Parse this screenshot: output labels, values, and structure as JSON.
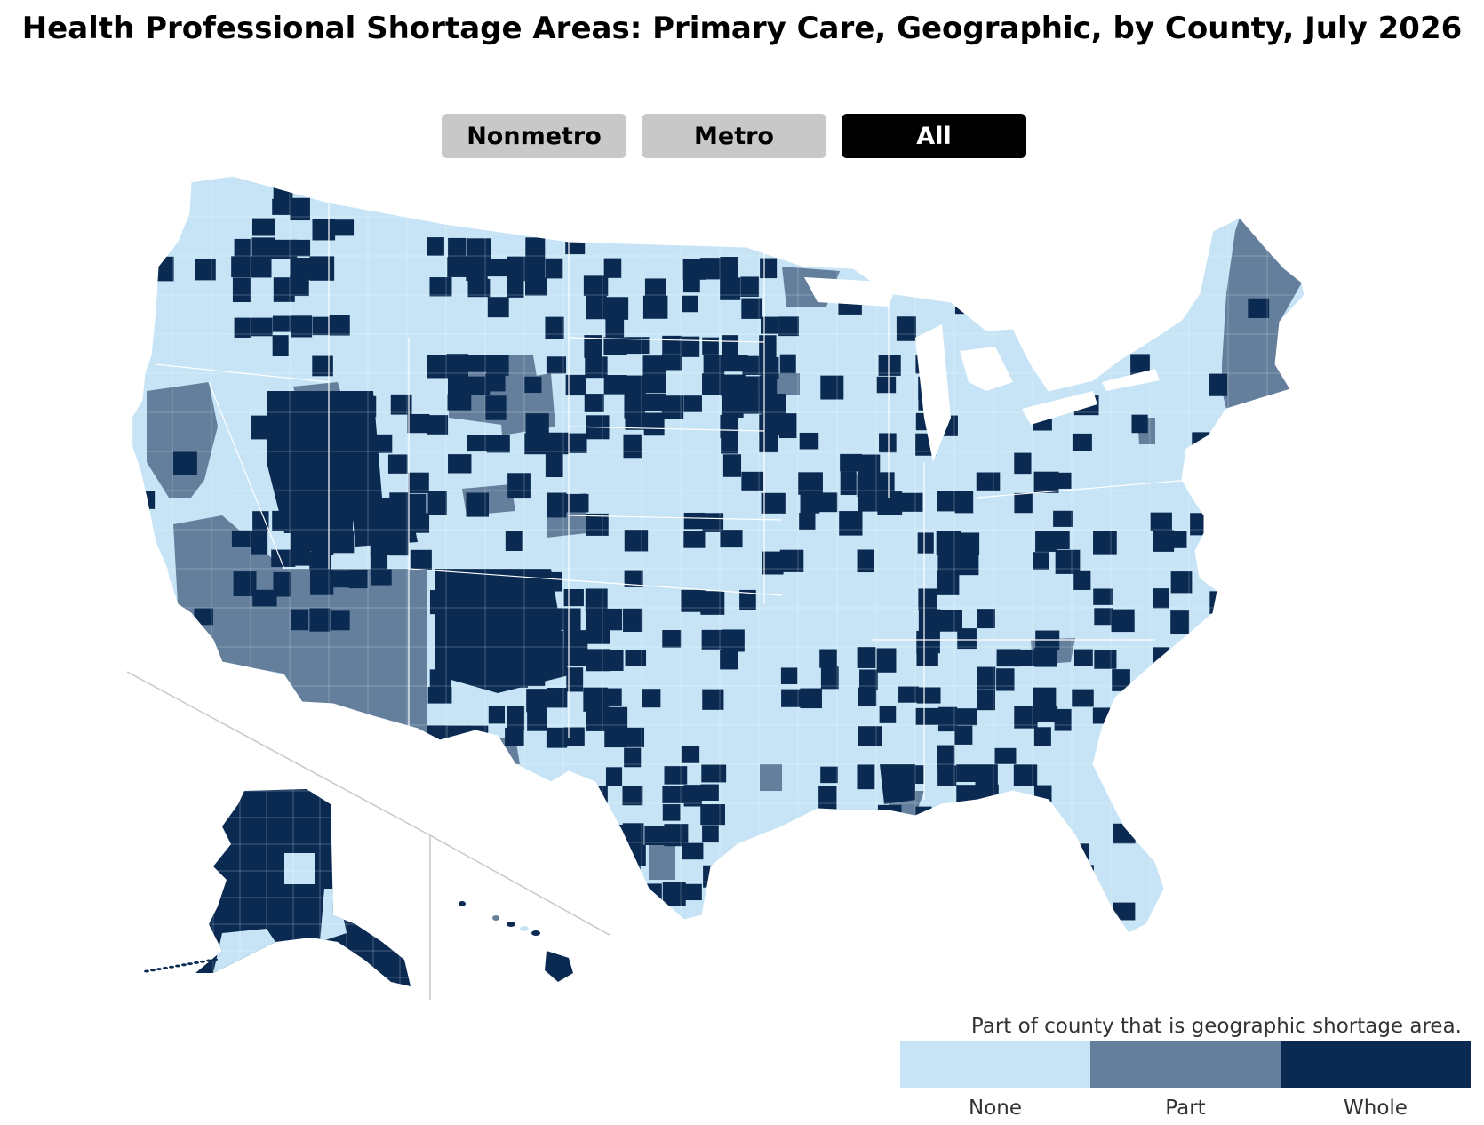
{
  "title": "Health Professional Shortage Areas: Primary Care, Geographic, by County, July 2026",
  "filters": [
    {
      "label": "Nonmetro",
      "active": false
    },
    {
      "label": "Metro",
      "active": false
    },
    {
      "label": "All",
      "active": true
    }
  ],
  "legend": {
    "title": "Part of county that is geographic shortage area.",
    "items": [
      {
        "label": "None",
        "color": "#c6e4f5"
      },
      {
        "label": "Part",
        "color": "#637f9c"
      },
      {
        "label": "Whole",
        "color": "#0a2a52"
      }
    ]
  },
  "colors": {
    "border": "#ffffff",
    "inset_divider": "#c8c8c8"
  }
}
